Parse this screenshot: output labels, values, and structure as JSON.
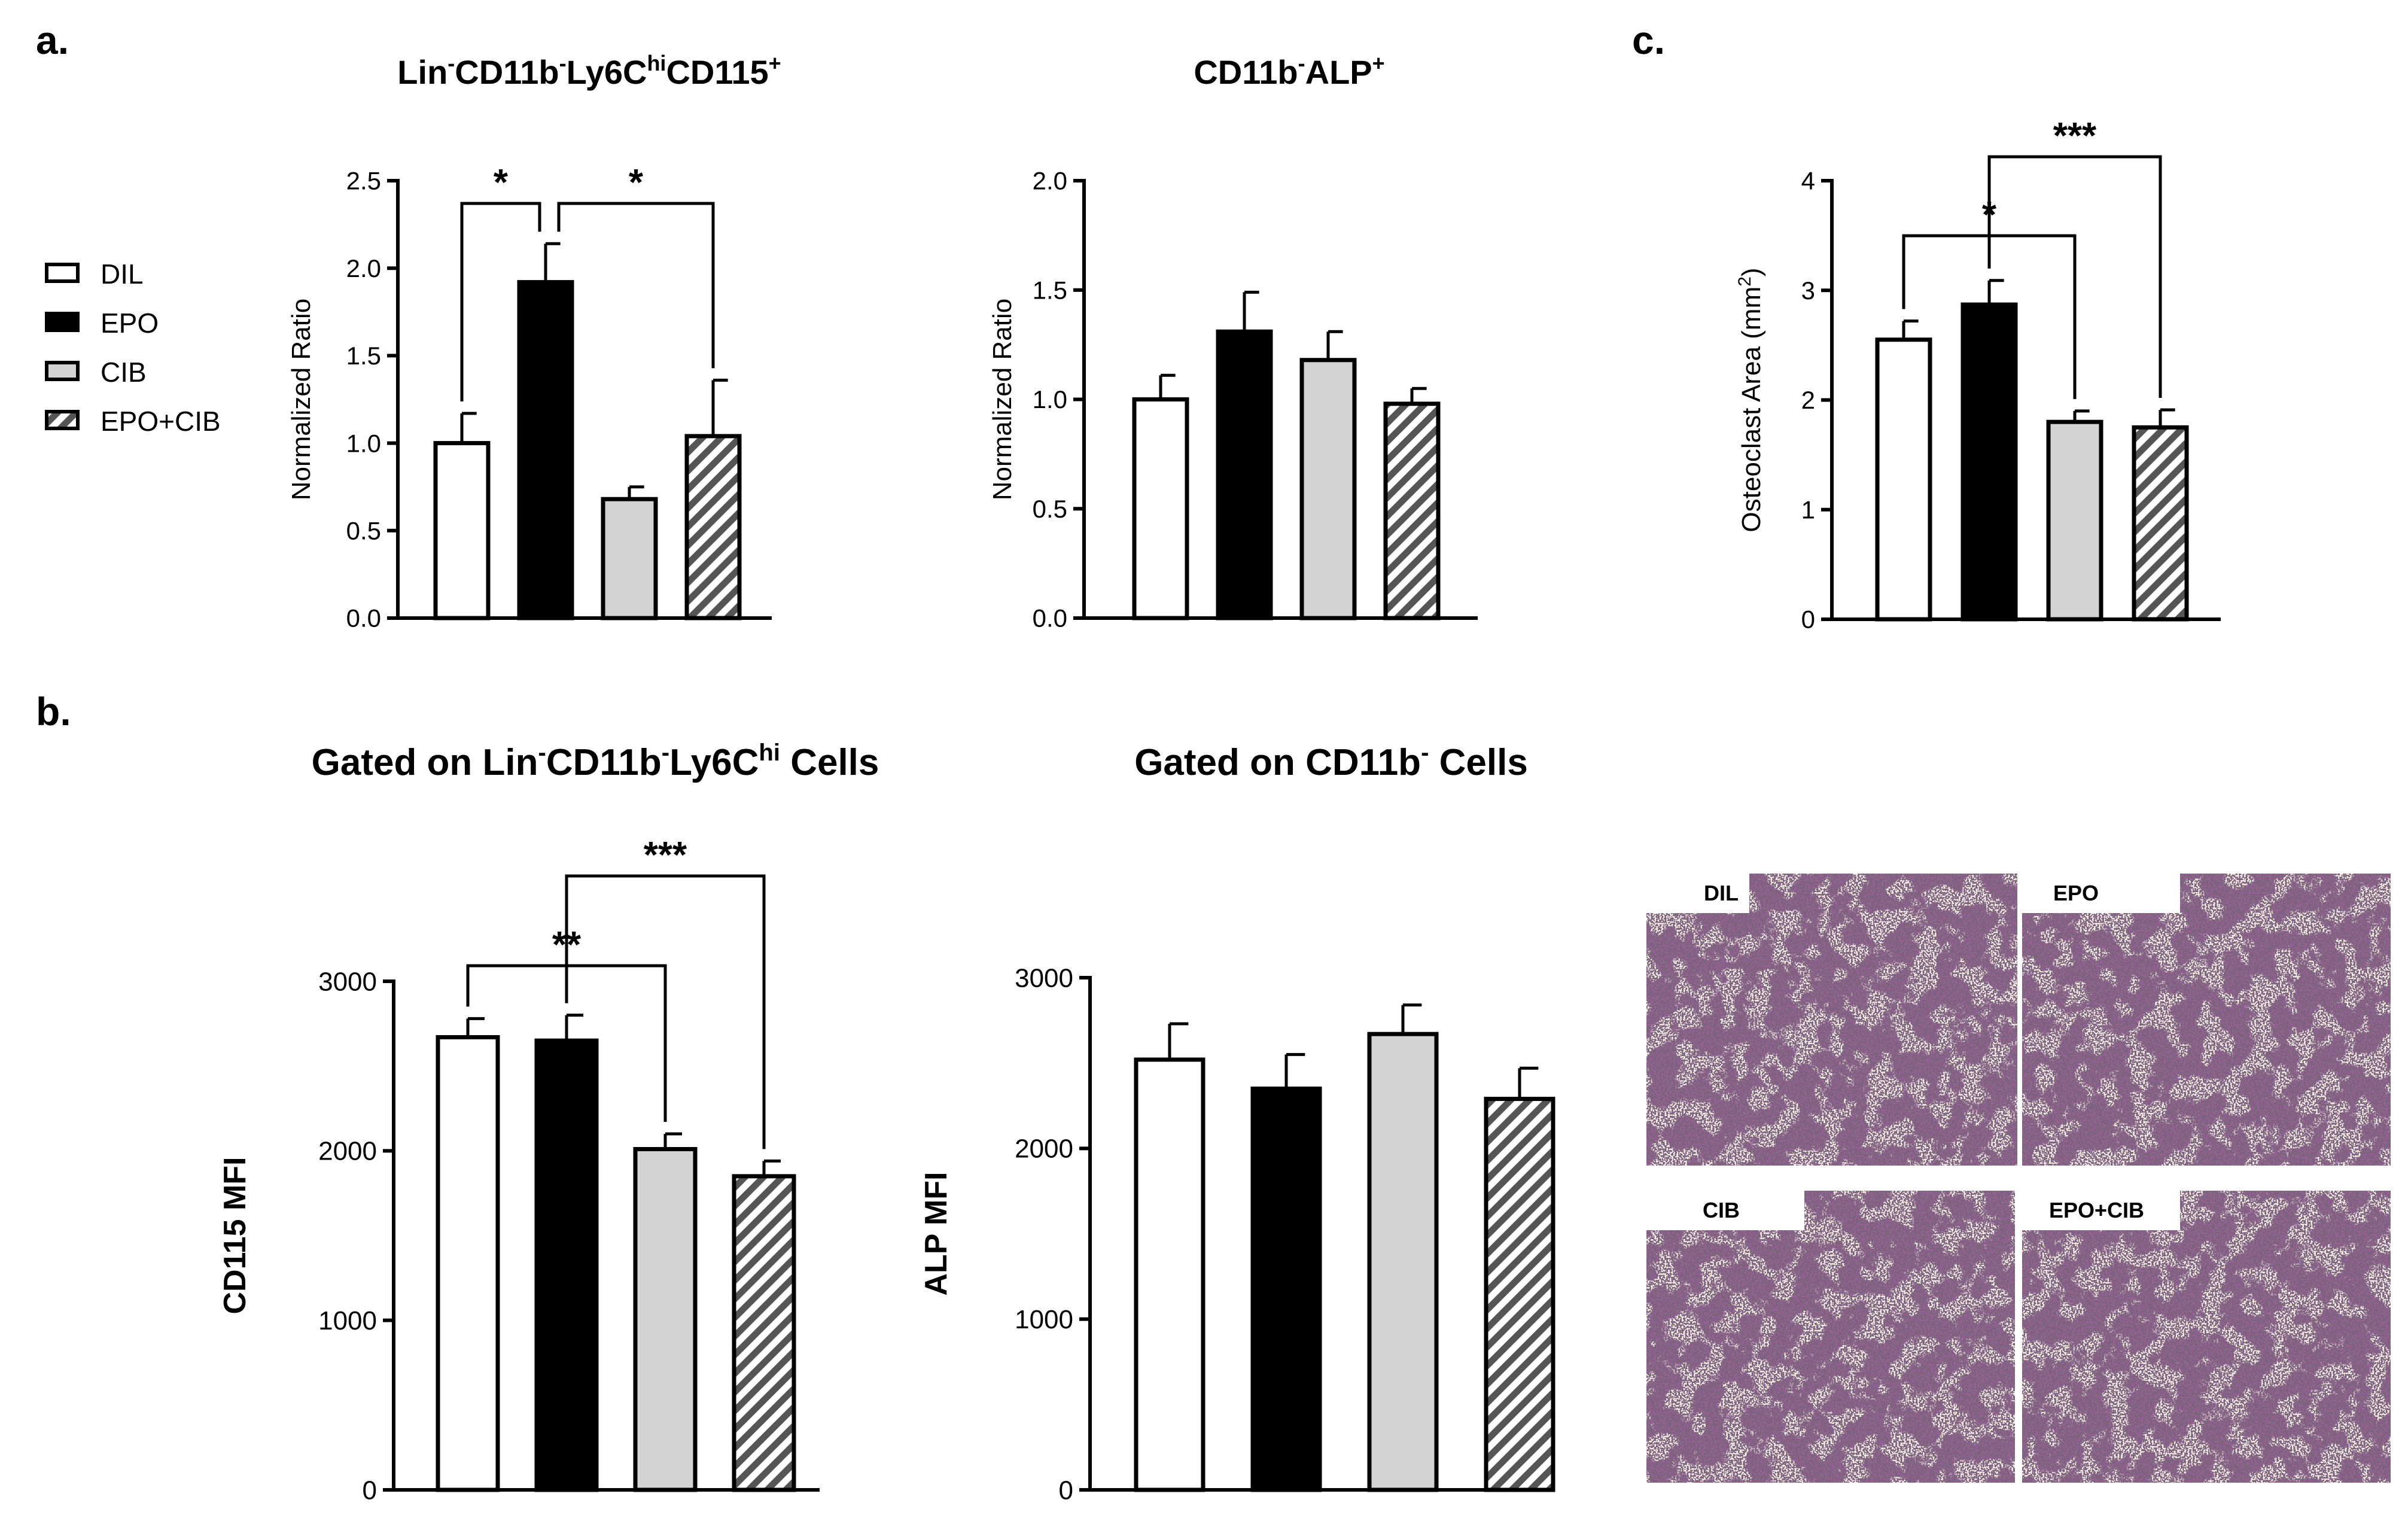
{
  "panels": {
    "a": "a.",
    "b": "b.",
    "c": "c."
  },
  "colors": {
    "DIL": "#ffffff",
    "EPO": "#000000",
    "CIB": "#d3d3d3",
    "EPO+CIB": "hatch",
    "stain": "#4a1f4a",
    "background": "#f3ece4"
  },
  "legend": [
    "DIL",
    "EPO",
    "CIB",
    "EPO+CIB"
  ],
  "chart_data": [
    {
      "id": "a1",
      "type": "bar",
      "title": {
        "pre": "Lin",
        "sup1": "-",
        "mid1": "CD11b",
        "sup2": "-",
        "mid2": "Ly6C",
        "sup3": "hi",
        "mid3": "CD115",
        "sup4": "+"
      },
      "ylabel": "Normalized Ratio",
      "ylim": [
        0,
        2.5
      ],
      "yticks": [
        "0.0",
        "0.5",
        "1.0",
        "1.5",
        "2.0",
        "2.5"
      ],
      "ytick_values": [
        0,
        0.5,
        1.0,
        1.5,
        2.0,
        2.5
      ],
      "categories": [
        "DIL",
        "EPO",
        "CIB",
        "EPO+CIB"
      ],
      "values": [
        1.0,
        1.92,
        0.68,
        1.04
      ],
      "errors": [
        0.17,
        0.22,
        0.07,
        0.32
      ],
      "significance": [
        {
          "from": 0,
          "to": 1,
          "label": "*"
        },
        {
          "from": 1,
          "to": 3,
          "label": "*"
        }
      ]
    },
    {
      "id": "a2",
      "type": "bar",
      "title": {
        "pre": "CD11b",
        "sup1": "-",
        "mid1": "ALP",
        "sup2": "+"
      },
      "ylabel": "Normalized Ratio",
      "ylim": [
        0,
        2.0
      ],
      "yticks": [
        "0.0",
        "0.5",
        "1.0",
        "1.5",
        "2.0"
      ],
      "ytick_values": [
        0,
        0.5,
        1.0,
        1.5,
        2.0
      ],
      "categories": [
        "DIL",
        "EPO",
        "CIB",
        "EPO+CIB"
      ],
      "values": [
        1.0,
        1.31,
        1.18,
        0.98
      ],
      "errors": [
        0.11,
        0.18,
        0.13,
        0.07
      ],
      "significance": []
    },
    {
      "id": "c",
      "type": "bar",
      "ylabel": {
        "pre": "Osteoclast Area (mm",
        "sup": "2",
        "post": ")"
      },
      "ylim": [
        0,
        4
      ],
      "yticks": [
        "0",
        "1",
        "2",
        "3",
        "4"
      ],
      "ytick_values": [
        0,
        1,
        2,
        3,
        4
      ],
      "categories": [
        "DIL",
        "EPO",
        "CIB",
        "EPO+CIB"
      ],
      "values": [
        2.55,
        2.87,
        1.8,
        1.75
      ],
      "errors": [
        0.17,
        0.22,
        0.1,
        0.16
      ],
      "significance": [
        {
          "from": 0,
          "to": 2,
          "label": "*"
        },
        {
          "from": 1,
          "to": 3,
          "label": "***"
        }
      ]
    },
    {
      "id": "b1",
      "type": "bar",
      "title": {
        "pre": "Gated on Lin",
        "sup1": "-",
        "mid1": "CD11b",
        "sup2": "-",
        "mid2": "Ly6C",
        "sup3": "hi",
        "mid3": " Cells"
      },
      "ylabel": "CD115 MFI",
      "ylim": [
        0,
        3000
      ],
      "yticks": [
        "0",
        "1000",
        "2000",
        "3000"
      ],
      "ytick_values": [
        0,
        1000,
        2000,
        3000
      ],
      "categories": [
        "DIL",
        "EPO",
        "CIB",
        "EPO+CIB"
      ],
      "values": [
        2670,
        2650,
        2010,
        1850
      ],
      "errors": [
        110,
        150,
        90,
        90
      ],
      "significance": [
        {
          "from": 0,
          "to": 2,
          "label": "**"
        },
        {
          "from": 1,
          "to": 3,
          "label": "***"
        }
      ]
    },
    {
      "id": "b2",
      "type": "bar",
      "title": {
        "pre": "Gated on CD11b",
        "sup1": "-",
        "mid1": " Cells"
      },
      "ylabel": "ALP MFI",
      "ylim": [
        0,
        3000
      ],
      "yticks": [
        "0",
        "1000",
        "2000",
        "3000"
      ],
      "ytick_values": [
        0,
        1000,
        2000,
        3000
      ],
      "categories": [
        "DIL",
        "EPO",
        "CIB",
        "EPO+CIB"
      ],
      "values": [
        2520,
        2350,
        2670,
        2290
      ],
      "errors": [
        210,
        200,
        170,
        180
      ],
      "significance": []
    }
  ],
  "photos": [
    {
      "label": "DIL"
    },
    {
      "label": "EPO"
    },
    {
      "label": "CIB"
    },
    {
      "label": "EPO+CIB"
    }
  ]
}
